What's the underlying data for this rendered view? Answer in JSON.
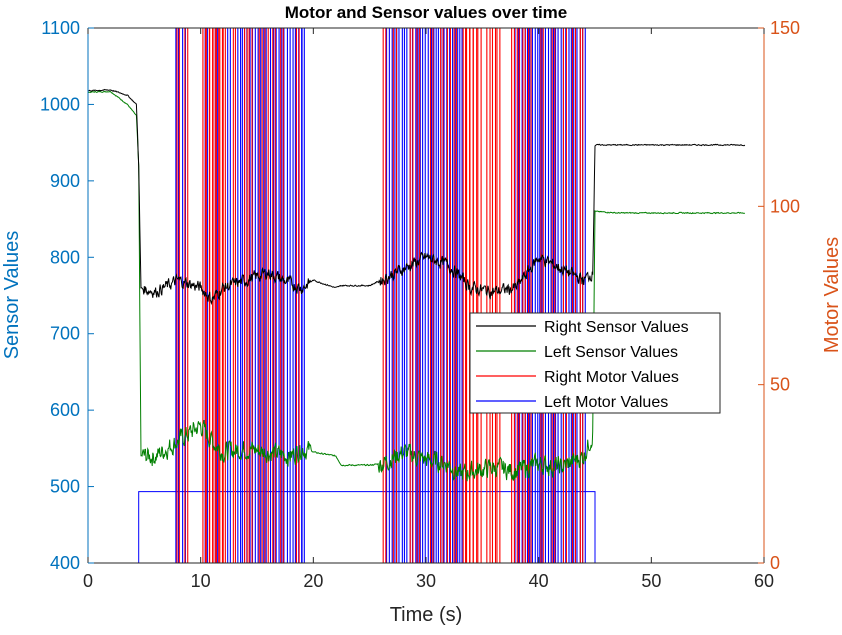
{
  "chart_data": {
    "type": "line",
    "title": "Motor and Sensor values over time",
    "xlabel": "Time (s)",
    "ylabel_left": "Sensor Values",
    "ylabel_right": "Motor Values",
    "xlim": [
      0,
      60
    ],
    "ylim_left": [
      400,
      1100
    ],
    "ylim_right": [
      0,
      150
    ],
    "xticks": [
      0,
      10,
      20,
      30,
      40,
      50,
      60
    ],
    "yticks_left": [
      400,
      500,
      600,
      700,
      800,
      900,
      1000,
      1100
    ],
    "yticks_right": [
      0,
      50,
      100,
      150
    ],
    "grid": false,
    "legend_position": "right-middle",
    "colors": {
      "left_axis": "#0072BD",
      "right_axis": "#D95319",
      "right_sensor": "#000000",
      "left_sensor": "#007F00",
      "right_motor": "#FF0000",
      "left_motor": "#0000FF"
    },
    "series": [
      {
        "name": "Right Sensor Values",
        "axis": "left",
        "x": [
          0,
          2,
          3.5,
          4.3,
          4.5,
          4.7,
          6,
          8,
          10,
          11,
          12,
          14,
          16,
          18,
          19,
          20,
          22,
          22.5,
          25,
          26,
          28,
          30,
          32,
          33,
          34,
          36,
          38,
          40,
          42,
          44,
          44.8,
          45,
          47,
          50,
          55,
          58.3
        ],
        "y": [
          1018,
          1019,
          1012,
          1000,
          920,
          760,
          755,
          770,
          760,
          745,
          760,
          770,
          780,
          765,
          760,
          770,
          760,
          763,
          763,
          770,
          785,
          800,
          790,
          775,
          760,
          755,
          760,
          800,
          785,
          770,
          780,
          947,
          947,
          947,
          947,
          947
        ]
      },
      {
        "name": "Left Sensor Values",
        "axis": "left",
        "x": [
          0,
          2,
          3.5,
          4.3,
          4.5,
          4.7,
          6,
          8,
          10,
          11,
          12,
          14,
          16,
          18,
          19,
          20,
          22,
          22.5,
          25,
          26,
          28,
          30,
          32,
          33,
          34,
          36,
          38,
          40,
          42,
          44,
          44.8,
          45,
          47,
          50,
          55,
          58.3
        ],
        "y": [
          1016,
          1017,
          1000,
          985,
          920,
          540,
          540,
          560,
          580,
          560,
          545,
          550,
          545,
          540,
          550,
          545,
          540,
          528,
          528,
          530,
          545,
          535,
          530,
          515,
          520,
          525,
          520,
          530,
          525,
          540,
          570,
          860,
          858,
          858,
          858,
          858
        ]
      },
      {
        "name": "Right Motor Values",
        "axis": "right",
        "baseline": 0,
        "level": 20,
        "pulses": [
          7.9,
          8.6,
          10.2,
          10.5,
          10.8,
          11.1,
          11.4,
          11.7,
          12.0,
          12.9,
          13.9,
          14.3,
          15.2,
          15.7,
          16.4,
          17.1,
          18.5,
          26.2,
          27.1,
          28.6,
          29.2,
          30.4,
          31.3,
          31.9,
          32.5,
          33.3,
          33.6,
          33.9,
          34.2,
          34.6,
          35.4,
          35.9,
          36.3,
          37.6,
          38.1,
          38.6,
          39.1,
          40.2,
          41.2,
          42.2,
          43.0,
          43.7
        ]
      },
      {
        "name": "Left Motor Values",
        "axis": "right",
        "baseline": 0,
        "level": 20,
        "step_on": 4.5,
        "step_off": 45.0,
        "pulses": [
          7.8,
          8.4,
          10.4,
          11.3,
          12.4,
          13.3,
          13.7,
          14.1,
          14.6,
          15.1,
          15.6,
          16.2,
          16.7,
          17.2,
          17.7,
          18.2,
          18.7,
          19.0,
          26.5,
          27.0,
          27.4,
          27.9,
          28.3,
          28.8,
          29.3,
          29.7,
          30.2,
          30.7,
          31.1,
          31.6,
          32.1,
          32.6,
          33.0,
          37.9,
          38.3,
          38.8,
          39.2,
          39.7,
          40.1,
          40.6,
          41.1,
          41.5,
          42.0,
          42.4,
          42.9,
          43.4,
          43.9
        ]
      }
    ]
  }
}
